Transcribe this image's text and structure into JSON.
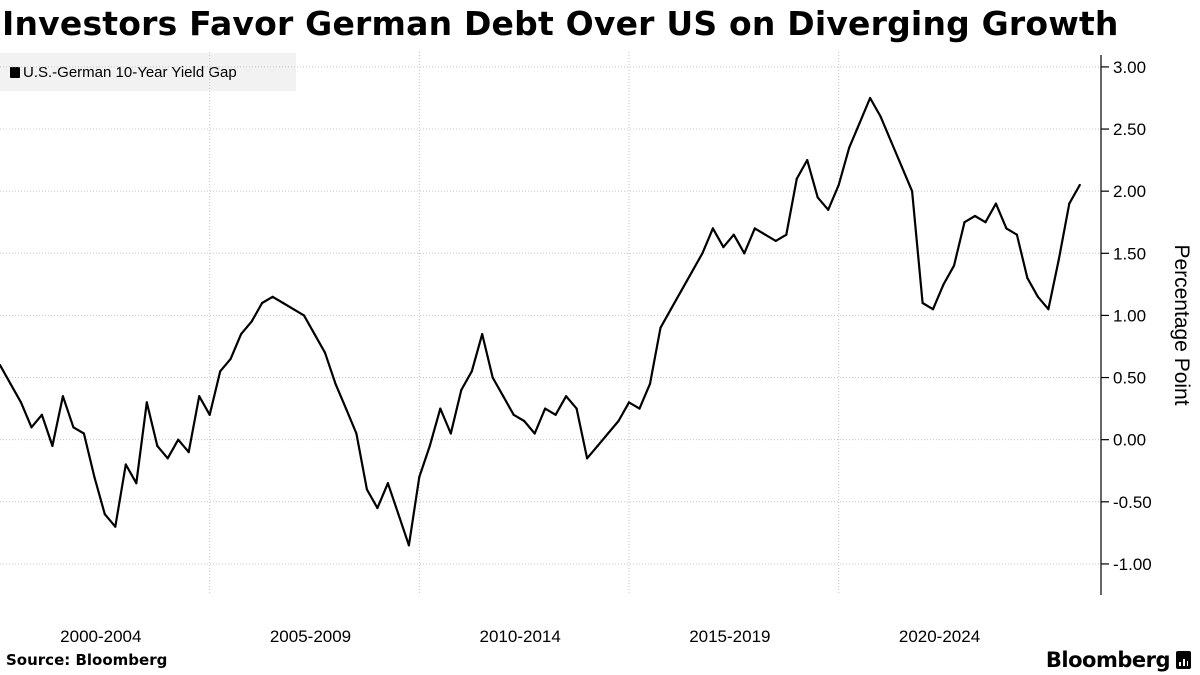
{
  "title": "Investors Favor German Debt Over US on Diverging Growth",
  "legend": {
    "label": "U.S.-German 10-Year Yield Gap"
  },
  "footer": {
    "source": "Source: Bloomberg",
    "brand": "Bloomberg"
  },
  "chart_data": {
    "type": "line",
    "title": "Investors Favor German Debt Over US on Diverging Growth",
    "ylabel": "Percentage Point",
    "xlabel": "",
    "ylim": [
      -1.25,
      3.12
    ],
    "xlim": [
      2000.0,
      2025.85
    ],
    "yticks": [
      3.0,
      2.5,
      2.0,
      1.5,
      1.0,
      0.5,
      0.0,
      -0.5,
      -1.0
    ],
    "ytick_labels": [
      "3.00",
      "2.50",
      "2.00",
      "1.50",
      "1.00",
      "0.50",
      "0.00",
      "-0.50",
      "-1.00"
    ],
    "xtick_labels": [
      "2000-2004",
      "2005-2009",
      "2010-2014",
      "2015-2019",
      "2020-2024"
    ],
    "x_gridlines": [
      2005.0,
      2010.0,
      2015.0,
      2020.0
    ],
    "grid": true,
    "line_color": "#000000",
    "series": [
      {
        "name": "U.S.-German 10-Year Yield Gap",
        "x": [
          2000.0,
          2000.25,
          2000.5,
          2000.75,
          2001.0,
          2001.25,
          2001.5,
          2001.75,
          2002.0,
          2002.25,
          2002.5,
          2002.75,
          2003.0,
          2003.25,
          2003.5,
          2003.75,
          2004.0,
          2004.25,
          2004.5,
          2004.75,
          2005.0,
          2005.25,
          2005.5,
          2005.75,
          2006.0,
          2006.25,
          2006.5,
          2006.75,
          2007.0,
          2007.25,
          2007.5,
          2007.75,
          2008.0,
          2008.25,
          2008.5,
          2008.75,
          2009.0,
          2009.25,
          2009.5,
          2009.75,
          2010.0,
          2010.25,
          2010.5,
          2010.75,
          2011.0,
          2011.25,
          2011.5,
          2011.75,
          2012.0,
          2012.25,
          2012.5,
          2012.75,
          2013.0,
          2013.25,
          2013.5,
          2013.75,
          2014.0,
          2014.25,
          2014.5,
          2014.75,
          2015.0,
          2015.25,
          2015.5,
          2015.75,
          2016.0,
          2016.25,
          2016.5,
          2016.75,
          2017.0,
          2017.25,
          2017.5,
          2017.75,
          2018.0,
          2018.25,
          2018.5,
          2018.75,
          2019.0,
          2019.25,
          2019.5,
          2019.75,
          2020.0,
          2020.25,
          2020.5,
          2020.75,
          2021.0,
          2021.25,
          2021.5,
          2021.75,
          2022.0,
          2022.25,
          2022.5,
          2022.75,
          2023.0,
          2023.25,
          2023.5,
          2023.75,
          2024.0,
          2024.25,
          2024.5,
          2024.75,
          2025.0,
          2025.25,
          2025.5,
          2025.75
        ],
        "values": [
          0.6,
          0.45,
          0.3,
          0.1,
          0.2,
          -0.05,
          0.35,
          0.1,
          0.05,
          -0.3,
          -0.6,
          -0.7,
          -0.2,
          -0.35,
          0.3,
          -0.05,
          -0.15,
          0.0,
          -0.1,
          0.35,
          0.2,
          0.55,
          0.65,
          0.85,
          0.95,
          1.1,
          1.15,
          1.1,
          1.05,
          1.0,
          0.85,
          0.7,
          0.45,
          0.25,
          0.05,
          -0.4,
          -0.55,
          -0.35,
          -0.6,
          -0.85,
          -0.3,
          -0.05,
          0.25,
          0.05,
          0.4,
          0.55,
          0.85,
          0.5,
          0.35,
          0.2,
          0.15,
          0.05,
          0.25,
          0.2,
          0.35,
          0.25,
          -0.15,
          -0.05,
          0.05,
          0.15,
          0.3,
          0.25,
          0.45,
          0.9,
          1.05,
          1.2,
          1.35,
          1.5,
          1.7,
          1.55,
          1.65,
          1.5,
          1.7,
          1.65,
          1.6,
          1.65,
          2.1,
          2.25,
          1.95,
          1.85,
          2.05,
          2.35,
          2.55,
          2.75,
          2.6,
          2.4,
          2.2,
          2.0,
          1.1,
          1.05,
          1.25,
          1.4,
          1.75,
          1.8,
          1.75,
          1.9,
          1.7,
          1.65,
          1.3,
          1.15,
          1.05,
          1.45,
          1.9,
          2.05
        ]
      }
    ]
  }
}
